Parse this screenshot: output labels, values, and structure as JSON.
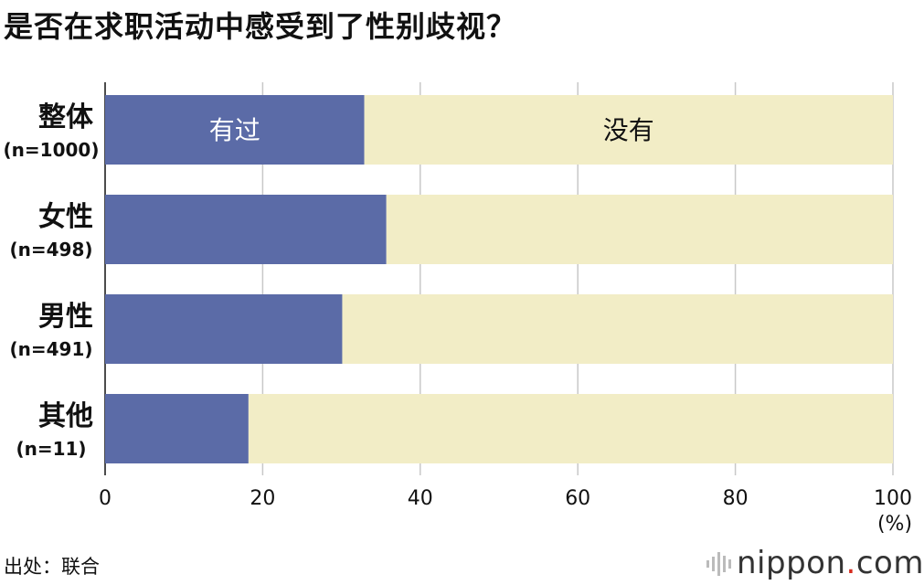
{
  "title": "是否在求职活动中感受到了性别歧视？",
  "source": "出处：联合",
  "logo": {
    "name": "nippon",
    "dot": ".",
    "tld": "com",
    "dot_color": "#d52b1e"
  },
  "chart_data": {
    "type": "bar",
    "orientation": "horizontal",
    "stacked": true,
    "categories": [
      "整体",
      "女性",
      "男性",
      "其他"
    ],
    "category_notes": [
      "(n=1000)",
      "(n=498)",
      "(n=491)",
      "(n=11)"
    ],
    "series": [
      {
        "name": "有过",
        "values": [
          32.9,
          35.7,
          30.1,
          18.2
        ],
        "color": "#5b6ba7"
      },
      {
        "name": "没有",
        "values": [
          67.1,
          64.3,
          69.9,
          81.8
        ],
        "color": "#f2edc6"
      }
    ],
    "xlim": [
      0,
      100
    ],
    "xticks": [
      0,
      20,
      40,
      60,
      80,
      100
    ],
    "xunit": "(%)",
    "grid": true,
    "legend": "inline-first-bar"
  }
}
